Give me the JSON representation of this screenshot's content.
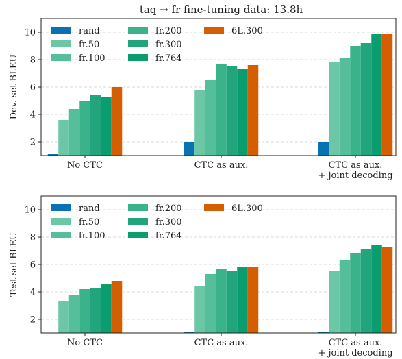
{
  "figure_title": "taq → fr fine-tuning data: 13.8h",
  "palette": {
    "rand": "#0872b2",
    "fr.50": "#6cc7a7",
    "fr.100": "#55bf9b",
    "fr.200": "#3bb38a",
    "fr.300": "#22a57d",
    "fr.764": "#099d6f",
    "6L.300": "#d55e00"
  },
  "chart_data": [
    {
      "type": "bar",
      "title": "taq → fr fine-tuning data: 13.8h",
      "ylabel": "Dev. set BLEU",
      "xlabel": "",
      "ylim": [
        1,
        11
      ],
      "yticks": [
        2,
        4,
        6,
        8,
        10
      ],
      "grid": true,
      "legend_position": "top-left",
      "categories": [
        "No CTC",
        "CTC as aux.",
        "CTC as aux.\n+ joint decoding"
      ],
      "series": [
        {
          "name": "rand",
          "values": [
            1.1,
            2.0,
            2.0
          ]
        },
        {
          "name": "fr.50",
          "values": [
            3.6,
            5.8,
            7.8
          ]
        },
        {
          "name": "fr.100",
          "values": [
            4.4,
            6.5,
            8.1
          ]
        },
        {
          "name": "fr.200",
          "values": [
            5.0,
            7.7,
            9.0
          ]
        },
        {
          "name": "fr.300",
          "values": [
            5.4,
            7.5,
            9.2
          ]
        },
        {
          "name": "fr.764",
          "values": [
            5.3,
            7.3,
            9.9
          ]
        },
        {
          "name": "6L.300",
          "values": [
            6.0,
            7.6,
            9.9
          ]
        }
      ]
    },
    {
      "type": "bar",
      "title": "",
      "ylabel": "Test set BLEU",
      "xlabel": "",
      "ylim": [
        1,
        11
      ],
      "yticks": [
        2,
        4,
        6,
        8,
        10
      ],
      "grid": true,
      "legend_position": "top-left",
      "categories": [
        "No CTC",
        "CTC as aux.",
        "CTC as aux.\n+ joint decoding"
      ],
      "series": [
        {
          "name": "rand",
          "values": [
            1.0,
            1.1,
            1.1
          ]
        },
        {
          "name": "fr.50",
          "values": [
            3.3,
            4.4,
            5.5
          ]
        },
        {
          "name": "fr.100",
          "values": [
            3.8,
            5.3,
            6.3
          ]
        },
        {
          "name": "fr.200",
          "values": [
            4.2,
            5.7,
            6.8
          ]
        },
        {
          "name": "fr.300",
          "values": [
            4.3,
            5.5,
            7.1
          ]
        },
        {
          "name": "fr.764",
          "values": [
            4.6,
            5.8,
            7.4
          ]
        },
        {
          "name": "6L.300",
          "values": [
            4.8,
            5.8,
            7.3
          ]
        }
      ]
    }
  ]
}
